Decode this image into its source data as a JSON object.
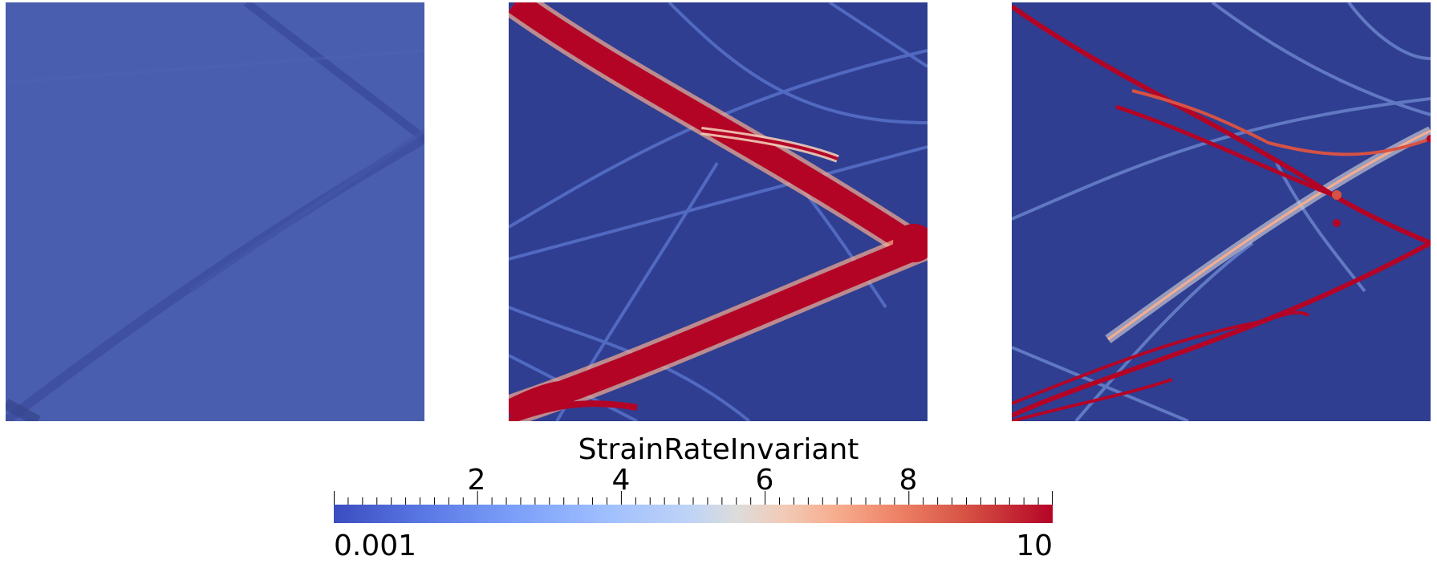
{
  "panels": [
    {
      "name": "panel-1"
    },
    {
      "name": "panel-2"
    },
    {
      "name": "panel-3"
    }
  ],
  "colorbar": {
    "title": "StrainRateInvariant",
    "min_label": "0.001",
    "max_label": "10",
    "tick_labels": [
      "2",
      "4",
      "6",
      "8"
    ],
    "colormap": "cool-to-warm",
    "low_color": "#3b4cc0",
    "high_color": "#b40426",
    "background_color": "#2f3e91"
  }
}
